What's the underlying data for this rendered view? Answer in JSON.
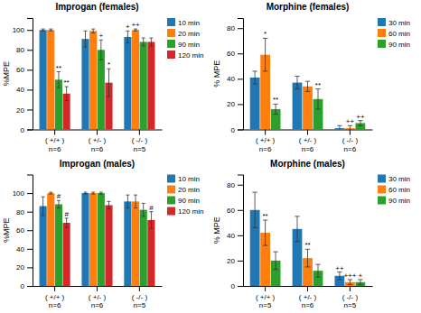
{
  "chart_data": [
    {
      "type": "bar",
      "title": "Improgan (females)",
      "y_label": "%MPE",
      "categories": [
        "( +/+ )",
        "( +/- )",
        "( -/- )"
      ],
      "n_labels": [
        "n=6",
        "n=6",
        "n=5"
      ],
      "series": [
        {
          "name": "10 min",
          "values": [
            100,
            91,
            93
          ],
          "errors": [
            1,
            8,
            6
          ]
        },
        {
          "name": "20 min",
          "values": [
            100,
            99,
            100
          ],
          "errors": [
            1,
            2,
            1
          ]
        },
        {
          "name": "90 min",
          "values": [
            50,
            80,
            88
          ],
          "errors": [
            8,
            10,
            4
          ]
        },
        {
          "name": "120 min",
          "values": [
            36,
            47,
            88
          ],
          "errors": [
            7,
            14,
            4
          ]
        }
      ],
      "ylim": [
        0,
        112
      ],
      "yticks": [
        0,
        20,
        40,
        60,
        80,
        100
      ],
      "grid": false,
      "legend": "right",
      "annotations": [
        {
          "text": "**",
          "category": "( +/+ )",
          "series": "90 min"
        },
        {
          "text": "**",
          "category": "( +/+ )",
          "series": "120 min"
        },
        {
          "text": "+",
          "category": "( +/- )",
          "series": "90 min"
        },
        {
          "text": "*",
          "category": "( +/- )",
          "series": "120 min"
        },
        {
          "text": "+",
          "category": "( -/- )",
          "series": "10 min"
        },
        {
          "text": "++",
          "category": "( -/- )",
          "series": "20 min"
        }
      ]
    },
    {
      "type": "bar",
      "title": "Morphine (females)",
      "y_label": "% MPE",
      "categories": [
        "( +/+ )",
        "( +/- )",
        "( -/- )"
      ],
      "n_labels": [
        "n=6",
        "n=6",
        "n=6"
      ],
      "series": [
        {
          "name": "30 min",
          "values": [
            41,
            37,
            1
          ],
          "errors": [
            5,
            5,
            2
          ]
        },
        {
          "name": "60 min",
          "values": [
            59,
            34,
            1
          ],
          "errors": [
            13,
            4,
            2
          ]
        },
        {
          "name": "90 min",
          "values": [
            16,
            24,
            5
          ],
          "errors": [
            4,
            8,
            2
          ]
        }
      ],
      "ylim": [
        0,
        88
      ],
      "yticks": [
        0,
        20,
        40,
        60,
        80
      ],
      "grid": false,
      "legend": "right",
      "annotations": [
        {
          "text": "*",
          "category": "( +/+ )",
          "series": "60 min"
        },
        {
          "text": "**",
          "category": "( +/+ )",
          "series": "90 min"
        },
        {
          "text": "**",
          "category": "( +/- )",
          "series": "90 min"
        },
        {
          "text": "++",
          "category": "( -/- )",
          "series": "60 min"
        },
        {
          "text": "++",
          "category": "( -/- )",
          "series": "90 min"
        }
      ]
    },
    {
      "type": "bar",
      "title": "Improgan (males)",
      "y_label": "%MPE",
      "categories": [
        "( +/+ )",
        "( +/- )",
        "( -/- )"
      ],
      "n_labels": [
        "n=6",
        "n=6",
        "n=5"
      ],
      "series": [
        {
          "name": "10 min",
          "values": [
            86,
            100,
            91
          ],
          "errors": [
            10,
            1,
            7
          ]
        },
        {
          "name": "20 min",
          "values": [
            100,
            100,
            91
          ],
          "errors": [
            1,
            1,
            7
          ]
        },
        {
          "name": "90 min",
          "values": [
            88,
            100,
            82
          ],
          "errors": [
            4,
            1,
            7
          ]
        },
        {
          "name": "120 min",
          "values": [
            68,
            87,
            71
          ],
          "errors": [
            5,
            4,
            9
          ]
        }
      ],
      "ylim": [
        0,
        120
      ],
      "yticks": [
        0,
        20,
        40,
        60,
        80,
        100
      ],
      "grid": false,
      "legend": "right",
      "annotations": [
        {
          "text": "#",
          "category": "( +/+ )",
          "series": "90 min"
        },
        {
          "text": "#",
          "category": "( +/+ )",
          "series": "120 min"
        },
        {
          "text": "#",
          "category": "( -/- )",
          "series": "120 min"
        }
      ]
    },
    {
      "type": "bar",
      "title": "Morphine (males)",
      "y_label": "% MPE",
      "categories": [
        "( +/+ )",
        "( +/- )",
        "( -/- )"
      ],
      "n_labels": [
        "n=5",
        "n=6",
        "n=5"
      ],
      "series": [
        {
          "name": "30 min",
          "values": [
            60,
            45,
            8
          ],
          "errors": [
            14,
            10,
            3
          ]
        },
        {
          "name": "60 min",
          "values": [
            42,
            22,
            3
          ],
          "errors": [
            10,
            7,
            2
          ]
        },
        {
          "name": "90 min",
          "values": [
            20,
            12,
            3
          ],
          "errors": [
            7,
            5,
            2
          ]
        }
      ],
      "ylim": [
        0,
        88
      ],
      "yticks": [
        0,
        20,
        40,
        60,
        80
      ],
      "grid": false,
      "legend": "right",
      "annotations": [
        {
          "text": "**",
          "category": "( +/+ )",
          "series": "60 min"
        },
        {
          "text": "**",
          "category": "( +/- )",
          "series": "60 min"
        },
        {
          "text": "++",
          "category": "( -/- )",
          "series": "30 min"
        },
        {
          "text": "+++",
          "category": "( -/- )",
          "series": "60 min"
        },
        {
          "text": "+",
          "category": "( -/- )",
          "series": "90 min"
        }
      ]
    }
  ]
}
